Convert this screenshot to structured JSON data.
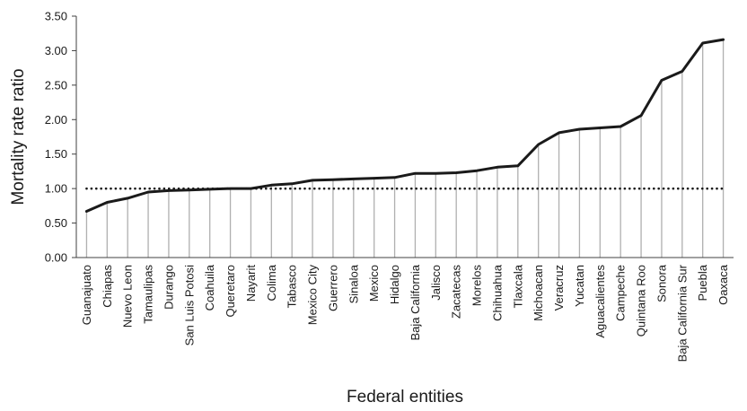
{
  "chart_data": {
    "type": "line",
    "title": "",
    "xlabel": "Federal entities",
    "ylabel": "Mortality rate ratio",
    "ylim": [
      0,
      3.5
    ],
    "ystep": 0.5,
    "ytick_decimals": 2,
    "grid": false,
    "categories": [
      "Guanajuato",
      "Chiapas",
      "Nuevo Leon",
      "Tamaulipas",
      "Durango",
      "San Luis Potosi",
      "Coahuila",
      "Queretaro",
      "Nayarit",
      "Colima",
      "Tabasco",
      "Mexico City",
      "Guerrero",
      "Sinaloa",
      "Mexico",
      "Hidalgo",
      "Baja California",
      "Jalisco",
      "Zacatecas",
      "Morelos",
      "Chihuahua",
      "Tlaxcala",
      "Michoacan",
      "Veracruz",
      "Yucatan",
      "Aguacalientes",
      "Campeche",
      "Quintana Roo",
      "Sonora",
      "Baja California Sur",
      "Puebla",
      "Oaxaca"
    ],
    "values": [
      0.67,
      0.8,
      0.86,
      0.95,
      0.97,
      0.98,
      0.99,
      1.0,
      1.0,
      1.05,
      1.07,
      1.12,
      1.13,
      1.14,
      1.15,
      1.16,
      1.22,
      1.22,
      1.23,
      1.26,
      1.31,
      1.33,
      1.64,
      1.81,
      1.86,
      1.88,
      1.9,
      2.06,
      2.57,
      2.7,
      3.11,
      3.16
    ],
    "reference_line": {
      "value": 1.0,
      "style": "dotted"
    },
    "drop_lines": true,
    "colors": {
      "line": "#1a1a1a",
      "drop": "#b0b0b0",
      "axis": "#404040",
      "reference": "#1a1a1a"
    }
  }
}
